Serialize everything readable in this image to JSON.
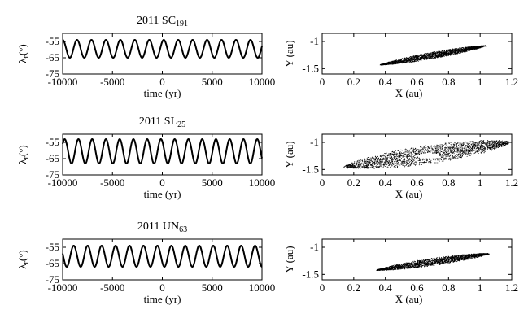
{
  "chart_data": [
    {
      "type": "line",
      "title": "2011 SC",
      "title_subscript": "191",
      "xlabel": "time (yr)",
      "ylabel": "λ",
      "ylabel_subscript": "r",
      "ylabel_unit": "(°)",
      "xlim": [
        -10000,
        10000
      ],
      "ylim": [
        -75,
        -50
      ],
      "xticks": [
        "-10000",
        "-5000",
        "0",
        "5000",
        "10000"
      ],
      "yticks": [
        "-55",
        "-65",
        "-75"
      ],
      "ytick_values": [
        -55,
        -65,
        -75
      ],
      "series": [
        {
          "period_yr": 1450,
          "min": -65,
          "max": -54,
          "phase": 0.15
        }
      ]
    },
    {
      "type": "scatter",
      "xlabel": "X (au)",
      "ylabel": "Y (au)",
      "xlim": [
        0,
        1.2
      ],
      "ylim": [
        -1.6,
        -0.85
      ],
      "xticks": [
        "0",
        "0.2",
        "0.4",
        "0.6",
        "0.8",
        "1",
        "1.2"
      ],
      "yticks": [
        "-1",
        "-1.5"
      ],
      "ytick_values": [
        -1,
        -1.5
      ],
      "orbit": {
        "x_from": 0.37,
        "x_to": 1.03,
        "y_from": -1.43,
        "y_to": -1.08,
        "width": 0.12,
        "hole": null
      }
    },
    {
      "type": "line",
      "title": "2011 SL",
      "title_subscript": "25",
      "xlabel": "time (yr)",
      "ylabel": "λ",
      "ylabel_subscript": "r",
      "ylabel_unit": "(°)",
      "xlim": [
        -10000,
        10000
      ],
      "ylim": [
        -75,
        -50
      ],
      "xticks": [
        "-10000",
        "-5000",
        "0",
        "5000",
        "10000"
      ],
      "yticks": [
        "-55",
        "-65",
        "-75"
      ],
      "ytick_values": [
        -55,
        -65,
        -75
      ],
      "series": [
        {
          "period_yr": 1380,
          "min": -68,
          "max": -53,
          "phase": 0.35
        }
      ]
    },
    {
      "type": "scatter",
      "xlabel": "X (au)",
      "ylabel": "Y (au)",
      "xlim": [
        0,
        1.2
      ],
      "ylim": [
        -1.6,
        -0.85
      ],
      "xticks": [
        "0",
        "0.2",
        "0.4",
        "0.6",
        "0.8",
        "1",
        "1.2"
      ],
      "yticks": [
        "-1",
        "-1.5"
      ],
      "ytick_values": [
        -1,
        -1.5
      ],
      "orbit": {
        "x_from": 0.15,
        "x_to": 1.18,
        "y_from": -1.45,
        "y_to": -1.0,
        "width": 0.34,
        "hole": {
          "x": 0.67,
          "y": -1.25,
          "rx": 0.07,
          "ry": 0.05
        }
      }
    },
    {
      "type": "line",
      "title": "2011 UN",
      "title_subscript": "63",
      "xlabel": "time (yr)",
      "ylabel": "λ",
      "ylabel_subscript": "r",
      "ylabel_unit": "(°)",
      "xlim": [
        -10000,
        10000
      ],
      "ylim": [
        -75,
        -50
      ],
      "xticks": [
        "-10000",
        "-5000",
        "0",
        "5000",
        "10000"
      ],
      "yticks": [
        "-55",
        "-65",
        "-75"
      ],
      "ytick_values": [
        -55,
        -65,
        -75
      ],
      "series": [
        {
          "period_yr": 1400,
          "min": -67,
          "max": -54,
          "phase": 0.6
        }
      ]
    },
    {
      "type": "scatter",
      "xlabel": "X (au)",
      "ylabel": "Y (au)",
      "xlim": [
        0,
        1.2
      ],
      "ylim": [
        -1.6,
        -0.85
      ],
      "xticks": [
        "0",
        "0.2",
        "0.4",
        "0.6",
        "0.8",
        "1",
        "1.2"
      ],
      "yticks": [
        "-1",
        "-1.5"
      ],
      "ytick_values": [
        -1,
        -1.5
      ],
      "orbit": {
        "x_from": 0.35,
        "x_to": 1.05,
        "y_from": -1.42,
        "y_to": -1.12,
        "width": 0.14,
        "hole": {
          "x": 0.72,
          "y": -1.32,
          "rx": 0.015,
          "ry": 0.02
        }
      }
    }
  ]
}
